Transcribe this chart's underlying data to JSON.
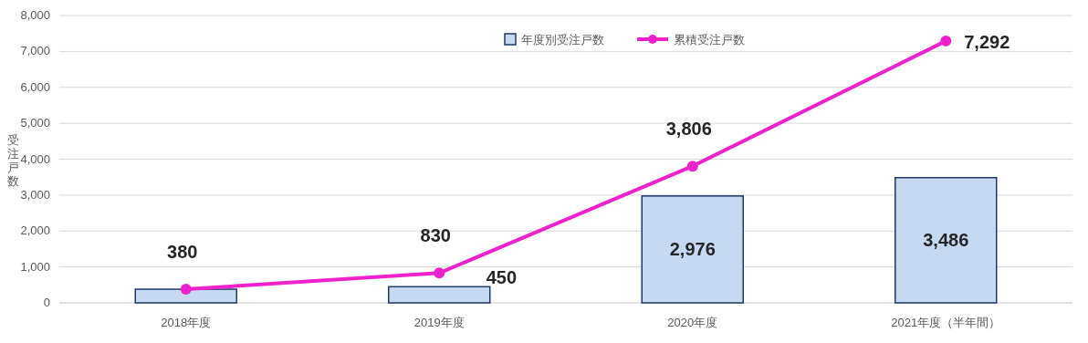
{
  "chart_data": {
    "type": "bar",
    "categories": [
      "2018年度",
      "2019年度",
      "2020年度",
      "2021年度（半年間）"
    ],
    "ylabel": "受注戸数",
    "ylim": [
      0,
      8000
    ],
    "yticks": [
      0,
      {
        "value": 1000,
        "label": "1,000"
      },
      {
        "value": 2000,
        "label": "2,000"
      },
      {
        "value": 3000,
        "label": "3,000"
      },
      {
        "value": 4000,
        "label": "4,000"
      },
      {
        "value": 5000,
        "label": "5,000"
      },
      {
        "value": 6000,
        "label": "6,000"
      },
      {
        "value": 7000,
        "label": "7,000"
      },
      {
        "value": 8000,
        "label": "8,000"
      }
    ],
    "grid": "y",
    "legend": "top",
    "marker": "circle",
    "line_style": "solid",
    "series": [
      {
        "name": "年度別受注戸数",
        "color": "#c6d9f1",
        "values": [
          380,
          450,
          2976,
          3486
        ],
        "value_labels": [
          null,
          "450",
          "2,976",
          "3,486"
        ]
      },
      {
        "name": "累積受注戸数",
        "type": "line",
        "color": "#ee22cc",
        "values": [
          380,
          830,
          3806,
          7292
        ],
        "value_labels": [
          "380",
          "830",
          "3,806",
          "7,292"
        ]
      }
    ]
  }
}
